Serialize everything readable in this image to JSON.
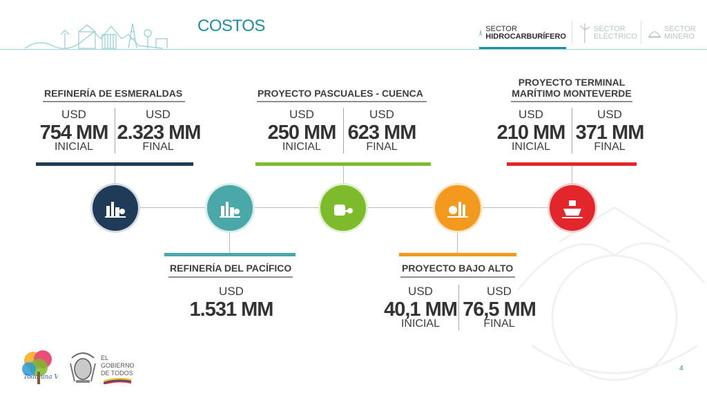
{
  "header": {
    "title": "COSTOS",
    "sectors": [
      {
        "line1": "SECTOR",
        "line2": "HIDROCARBURÍFERO",
        "active": true
      },
      {
        "line1": "SECTOR",
        "line2": "ELÉCTRICO",
        "active": false
      },
      {
        "line1": "SECTOR",
        "line2": "MINERO",
        "active": false
      }
    ]
  },
  "projects": {
    "esmeraldas": {
      "title": "REFINERÍA DE ESMERALDAS",
      "usd1": "USD",
      "value1": "754 MM",
      "label1": "INICIAL",
      "usd2": "USD",
      "value2": "2.323 MM",
      "label2": "FINAL",
      "color": "#1f3b57"
    },
    "pacifico": {
      "title": "REFINERÍA DEL PACÍFICO",
      "usd": "USD",
      "value": "1.531 MM",
      "color": "#4aa9a8"
    },
    "pascuales": {
      "title": "PROYECTO PASCUALES - CUENCA",
      "usd1": "USD",
      "value1": "250 MM",
      "label1": "INICIAL",
      "usd2": "USD",
      "value2": "623 MM",
      "label2": "FINAL",
      "color": "#7dbb2d"
    },
    "bajoalto": {
      "title": "PROYECTO BAJO ALTO",
      "usd1": "USD",
      "value1": "40,1 MM",
      "label1": "INICIAL",
      "usd2": "USD",
      "value2": "76,5 MM",
      "label2": "FINAL",
      "color": "#f39a1e"
    },
    "monteverde": {
      "title_line1": "PROYECTO TERMINAL",
      "title_line2": "MARÍTIMO MONTEVERDE",
      "usd1": "USD",
      "value1": "210 MM",
      "label1": "INICIAL",
      "usd2": "USD",
      "value2": "371 MM",
      "label2": "FINAL",
      "color": "#e2262b"
    }
  },
  "icons": {
    "n1": "refinery-icon",
    "n2": "refinery-icon",
    "n3": "pipeline-tank-icon",
    "n4": "gas-plant-icon",
    "n5": "ship-icon"
  },
  "footer": {
    "logo1_text": "Toda una Vida",
    "gov_line1": "EL",
    "gov_line2": "GOBIERNO",
    "gov_line3": "DE TODOS",
    "page_number": "4"
  }
}
